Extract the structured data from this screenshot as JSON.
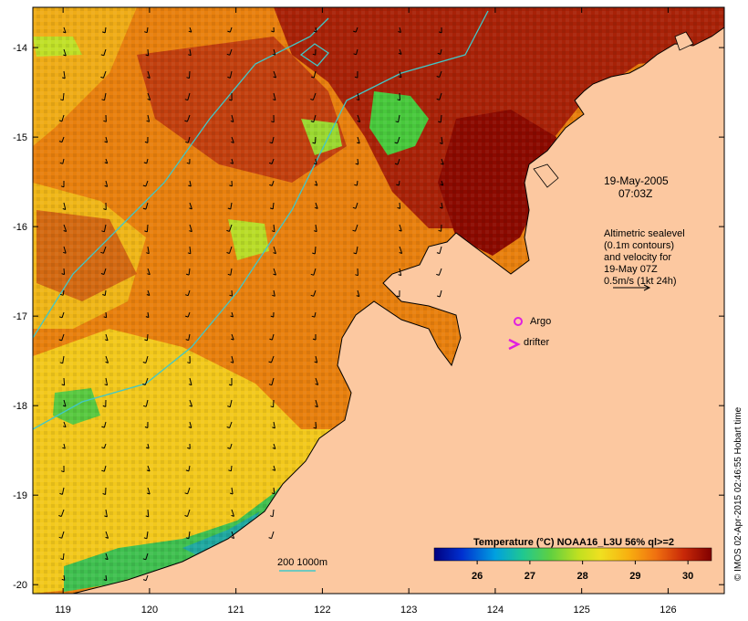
{
  "map": {
    "lon_ticks": [
      "119",
      "120",
      "121",
      "122",
      "123",
      "124",
      "125",
      "126"
    ],
    "lat_ticks": [
      "-14",
      "-15",
      "-16",
      "-17",
      "-18",
      "-19",
      "-20"
    ],
    "lon_range": [
      118.65,
      126.65
    ],
    "lat_range": [
      -20.1,
      -13.55
    ],
    "ocean_colors": {
      "deep_red": "#8b0a00",
      "red": "#b8260a",
      "orange": "#e06a10",
      "amber": "#f0a010",
      "yellow": "#f2d21a",
      "green": "#3cc63c",
      "teal": "#18b090",
      "blue": "#1060d0"
    },
    "land_color": "#fcc8a0",
    "contour_color": "#40c8c8"
  },
  "annotations": {
    "date": "19-May-2005",
    "time": "07:03Z",
    "altimetry_line1": "Altimetric sealevel",
    "altimetry_line2": "(0.1m contours)",
    "altimetry_line3": "and velocity for",
    "altimetry_line4": "19-May 07Z",
    "altimetry_line5": "0.5m/s (1kt 24h)",
    "argo_label": "Argo",
    "drifter_label": "drifter",
    "depth_label": "200  1000m"
  },
  "legend": {
    "title": "Temperature (°C) NOAA16_L3U 56% ql>=2",
    "ticks": [
      "26",
      "27",
      "28",
      "29",
      "30"
    ],
    "colors": [
      "#000080",
      "#0020c0",
      "#0070e0",
      "#00b0d0",
      "#20c890",
      "#60d040",
      "#b0e020",
      "#f0e020",
      "#f8b010",
      "#f08010",
      "#d84008",
      "#b01800",
      "#800000"
    ]
  },
  "credit": "© IMOS 02-Apr-2015 02:46:55 Hobart time"
}
